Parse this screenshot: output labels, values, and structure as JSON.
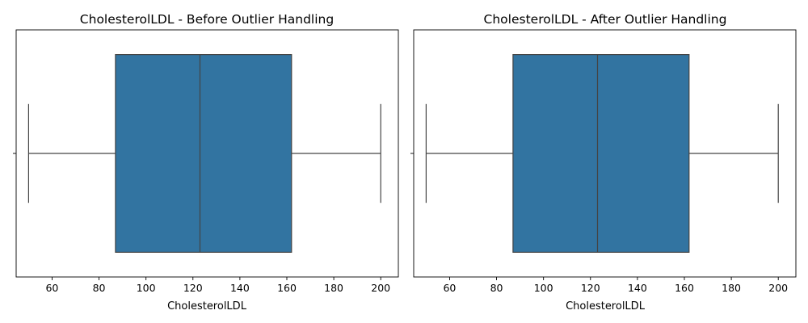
{
  "chart_data": [
    {
      "type": "box",
      "title": "CholesterolLDL - Before Outlier Handling",
      "xlabel": "CholesterolLDL",
      "ylabel": "",
      "xlim": [
        44.7,
        207.5
      ],
      "xticks": [
        60,
        80,
        100,
        120,
        140,
        160,
        180,
        200
      ],
      "box": {
        "whisker_low": 50,
        "q1": 87,
        "median": 123,
        "q3": 162,
        "whisker_high": 200
      },
      "outliers": [],
      "color": "#3274a1",
      "line_color": "#444444"
    },
    {
      "type": "box",
      "title": "CholesterolLDL - After Outlier Handling",
      "xlabel": "CholesterolLDL",
      "ylabel": "",
      "xlim": [
        44.7,
        207.5
      ],
      "xticks": [
        60,
        80,
        100,
        120,
        140,
        160,
        180,
        200
      ],
      "box": {
        "whisker_low": 50,
        "q1": 87,
        "median": 123,
        "q3": 162,
        "whisker_high": 200
      },
      "outliers": [],
      "color": "#3274a1",
      "line_color": "#444444"
    }
  ]
}
